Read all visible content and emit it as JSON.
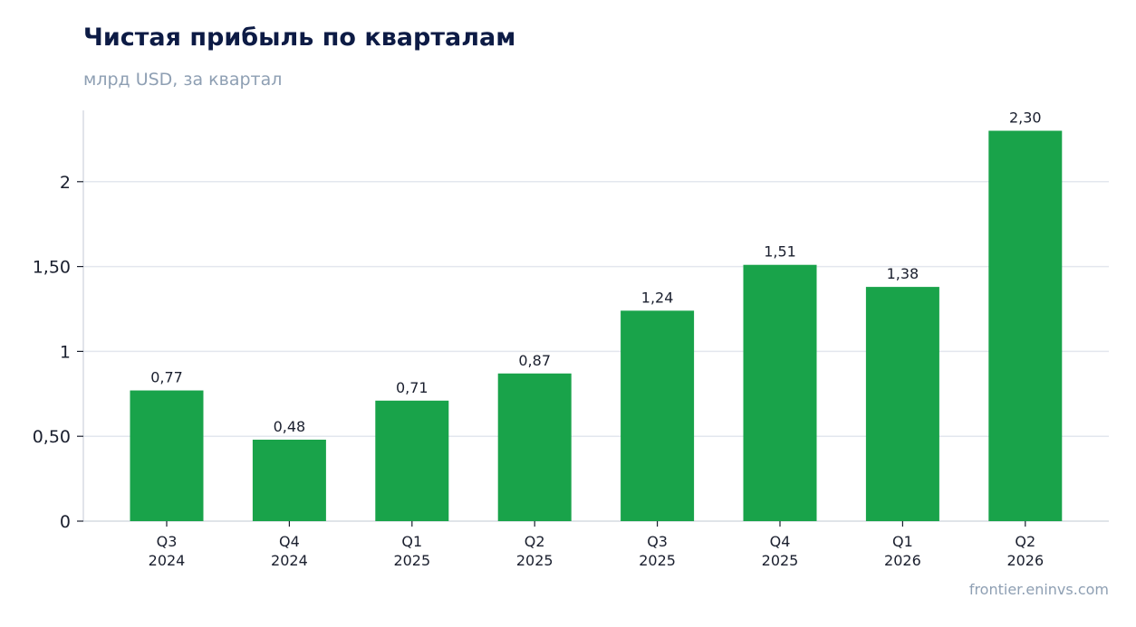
{
  "header": {
    "title": "Чистая прибыль по кварталам",
    "subtitle": "млрд USD, за квартал"
  },
  "footer": {
    "source": "frontier.eninvs.com"
  },
  "chart_data": {
    "type": "bar",
    "title": "Чистая прибыль по кварталам",
    "subtitle": "млрд USD, за квартал",
    "categories": [
      [
        "Q3",
        "2024"
      ],
      [
        "Q4",
        "2024"
      ],
      [
        "Q1",
        "2025"
      ],
      [
        "Q2",
        "2025"
      ],
      [
        "Q3",
        "2025"
      ],
      [
        "Q4",
        "2025"
      ],
      [
        "Q1",
        "2026"
      ],
      [
        "Q2",
        "2026"
      ]
    ],
    "values": [
      0.77,
      0.48,
      0.71,
      0.87,
      1.24,
      1.51,
      1.38,
      2.3
    ],
    "value_labels": [
      "0,77",
      "0,48",
      "0,71",
      "0,87",
      "1,24",
      "1,51",
      "1,38",
      "2,30"
    ],
    "yticks": [
      0,
      0.5,
      1,
      1.5,
      2
    ],
    "ytick_labels": [
      "0",
      "0,50",
      "1",
      "1,50",
      "2"
    ],
    "ylim": [
      0,
      2.42
    ],
    "xlabel": "",
    "ylabel": "",
    "grid": true,
    "colors": {
      "bar": "#19a34a",
      "grid": "#e3e7ee",
      "axis": "#cdd3dc",
      "text": "#1a1f2e"
    }
  }
}
